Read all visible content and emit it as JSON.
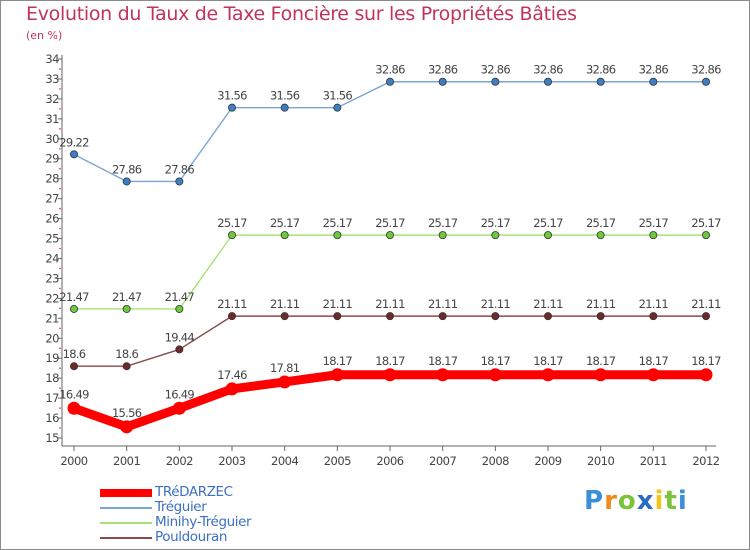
{
  "chart_data": {
    "type": "line",
    "title": "Evolution du Taux de Taxe Foncière sur les Propriétés Bâties",
    "ylabel": "(en %)",
    "xlabel": "",
    "x": [
      "2000",
      "2001",
      "2002",
      "2003",
      "2004",
      "2005",
      "2006",
      "2007",
      "2008",
      "2009",
      "2010",
      "2011",
      "2012"
    ],
    "ylim": [
      15,
      34
    ],
    "yticks": [
      15,
      16,
      17,
      18,
      19,
      20,
      21,
      22,
      23,
      24,
      25,
      26,
      27,
      28,
      29,
      30,
      31,
      32,
      33,
      34
    ],
    "grid": false,
    "legend_position": "bottom-left",
    "series": [
      {
        "name": "TRéDARZEC",
        "color": "#ff0000",
        "marker_color": "#ff0000",
        "label_color": "#444444",
        "values": [
          16.49,
          15.56,
          16.49,
          17.46,
          17.81,
          18.17,
          18.17,
          18.17,
          18.17,
          18.17,
          18.17,
          18.17,
          18.17
        ],
        "labels": [
          "16.49",
          "15.56",
          "16.49",
          "17.46",
          "17.81",
          "18.17",
          "18.17",
          "18.17",
          "18.17",
          "18.17",
          "18.17",
          "18.17",
          "18.17"
        ]
      },
      {
        "name": "Tréguier",
        "color": "#7ba6d4",
        "marker_color": "#3d7fc4",
        "label_color": "#444444",
        "values": [
          29.22,
          27.86,
          27.86,
          31.56,
          31.56,
          31.56,
          32.86,
          32.86,
          32.86,
          32.86,
          32.86,
          32.86,
          32.86
        ],
        "labels": [
          "29.22",
          "27.86",
          "27.86",
          "31.56",
          "31.56",
          "31.56",
          "32.86",
          "32.86",
          "32.86",
          "32.86",
          "32.86",
          "32.86",
          "32.86"
        ]
      },
      {
        "name": "Minihy-Tréguier",
        "color": "#a8e07c",
        "marker_color": "#6cc83c",
        "label_color": "#444444",
        "values": [
          21.47,
          21.47,
          21.47,
          25.17,
          25.17,
          25.17,
          25.17,
          25.17,
          25.17,
          25.17,
          25.17,
          25.17,
          25.17
        ],
        "labels": [
          "21.47",
          "21.47",
          "21.47",
          "25.17",
          "25.17",
          "25.17",
          "25.17",
          "25.17",
          "25.17",
          "25.17",
          "25.17",
          "25.17",
          "25.17"
        ]
      },
      {
        "name": "Pouldouran",
        "color": "#8a4a4a",
        "marker_color": "#6e2a2a",
        "label_color": "#444444",
        "values": [
          18.6,
          18.6,
          19.44,
          21.11,
          21.11,
          21.11,
          21.11,
          21.11,
          21.11,
          21.11,
          21.11,
          21.11,
          21.11
        ],
        "labels": [
          "18.6",
          "18.6",
          "19.44",
          "21.11",
          "21.11",
          "21.11",
          "21.11",
          "21.11",
          "21.11",
          "21.11",
          "21.11",
          "21.11",
          "21.11"
        ]
      }
    ]
  },
  "logo": {
    "letters": [
      "P",
      "r",
      "o",
      "x",
      "i",
      "t",
      "i"
    ],
    "colors": [
      "#3a8fd8",
      "#f08a1c",
      "#7cc23a",
      "#2a6cc4",
      "#f0c419",
      "#7cc23a",
      "#3a8fd8"
    ]
  }
}
